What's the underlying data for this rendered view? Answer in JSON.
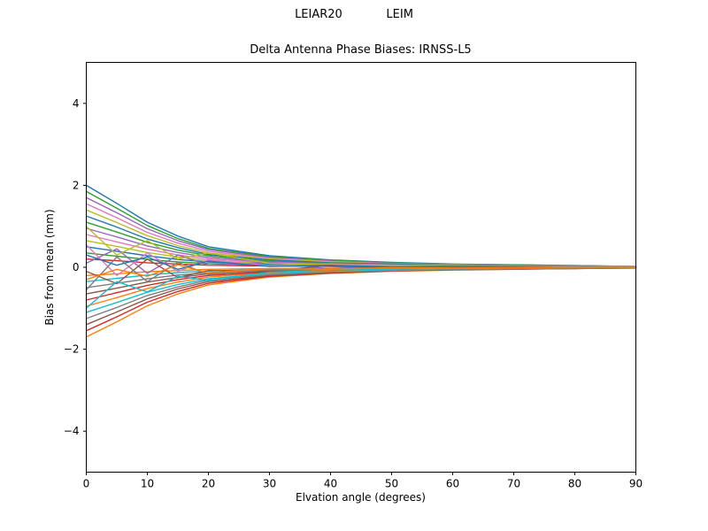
{
  "chart_data": {
    "type": "line",
    "suptitle": "LEIAR20            LEIM",
    "title": "Delta Antenna Phase Biases: IRNSS-L5",
    "xlabel": "Elvation angle (degrees)",
    "ylabel": "Bias from mean (mm)",
    "xlim": [
      0,
      90
    ],
    "ylim": [
      -5,
      5
    ],
    "x_ticks": [
      0,
      10,
      20,
      30,
      40,
      50,
      60,
      70,
      80,
      90
    ],
    "y_ticks": [
      -4,
      -2,
      0,
      2,
      4
    ],
    "grid": false,
    "legend": "none",
    "background": "#ffffff",
    "axes_color": "#000000",
    "palette": [
      "#1f77b4",
      "#ff7f0e",
      "#2ca02c",
      "#d62728",
      "#9467bd",
      "#8c564b",
      "#e377c2",
      "#7f7f7f",
      "#bcbd22",
      "#17becf"
    ],
    "x": [
      0,
      5,
      10,
      15,
      20,
      30,
      40,
      50,
      60,
      70,
      80,
      90
    ],
    "series": [
      {
        "values": [
          2.0,
          1.56,
          1.1,
          0.76,
          0.5,
          0.28,
          0.18,
          0.12,
          0.08,
          0.06,
          0.04,
          0.02
        ]
      },
      {
        "values": [
          -1.7,
          -1.33,
          -0.94,
          -0.65,
          -0.43,
          -0.24,
          -0.15,
          -0.1,
          -0.07,
          -0.05,
          -0.03,
          -0.02
        ]
      },
      {
        "values": [
          1.85,
          1.44,
          1.02,
          0.7,
          0.46,
          0.26,
          0.17,
          0.11,
          0.07,
          0.06,
          0.04,
          0.02
        ]
      },
      {
        "values": [
          -1.55,
          -1.21,
          -0.85,
          -0.59,
          -0.39,
          -0.22,
          -0.14,
          -0.09,
          -0.06,
          -0.05,
          -0.03,
          -0.02
        ]
      },
      {
        "values": [
          1.7,
          1.33,
          0.94,
          0.65,
          0.43,
          0.24,
          0.15,
          0.1,
          0.07,
          0.05,
          0.03,
          0.02
        ]
      },
      {
        "values": [
          -1.4,
          -1.09,
          -0.77,
          -0.53,
          -0.35,
          -0.2,
          -0.13,
          -0.08,
          -0.06,
          -0.04,
          -0.03,
          -0.01
        ]
      },
      {
        "values": [
          1.55,
          1.21,
          0.85,
          0.59,
          0.39,
          0.22,
          0.14,
          0.09,
          0.06,
          0.05,
          0.03,
          0.02
        ]
      },
      {
        "values": [
          -1.25,
          -0.98,
          -0.69,
          -0.48,
          -0.31,
          -0.18,
          -0.11,
          -0.08,
          -0.05,
          -0.04,
          -0.03,
          -0.01
        ]
      },
      {
        "values": [
          1.4,
          1.09,
          0.77,
          0.53,
          0.35,
          0.2,
          0.13,
          0.08,
          0.06,
          0.04,
          0.03,
          0.01
        ]
      },
      {
        "values": [
          -1.1,
          -0.86,
          -0.61,
          -0.42,
          -0.28,
          -0.15,
          -0.1,
          -0.07,
          -0.04,
          -0.03,
          -0.02,
          -0.01
        ]
      },
      {
        "values": [
          1.25,
          0.98,
          0.69,
          0.48,
          0.31,
          0.18,
          0.11,
          0.08,
          0.05,
          0.04,
          0.03,
          0.01
        ]
      },
      {
        "values": [
          -0.95,
          -0.74,
          -0.52,
          -0.36,
          -0.24,
          -0.13,
          -0.09,
          -0.06,
          -0.04,
          -0.03,
          -0.02,
          -0.01
        ]
      },
      {
        "values": [
          1.1,
          0.86,
          0.61,
          0.42,
          0.28,
          0.15,
          0.1,
          0.07,
          0.04,
          0.03,
          0.02,
          0.01
        ]
      },
      {
        "values": [
          -0.8,
          -0.62,
          -0.44,
          -0.3,
          -0.2,
          -0.11,
          -0.07,
          -0.05,
          -0.03,
          -0.02,
          -0.02,
          -0.01
        ]
      },
      {
        "values": [
          0.95,
          0.74,
          0.52,
          0.36,
          0.24,
          0.13,
          0.09,
          0.06,
          0.04,
          0.03,
          0.02,
          0.01
        ]
      },
      {
        "values": [
          -0.65,
          -0.51,
          -0.36,
          -0.25,
          -0.16,
          -0.09,
          -0.06,
          -0.04,
          -0.03,
          -0.02,
          -0.01,
          -0.01
        ]
      },
      {
        "values": [
          0.8,
          0.62,
          0.44,
          0.3,
          0.2,
          0.11,
          0.07,
          0.05,
          0.03,
          0.02,
          0.02,
          0.01
        ]
      },
      {
        "values": [
          -0.5,
          -0.39,
          -0.28,
          -0.19,
          -0.13,
          -0.07,
          -0.05,
          -0.03,
          -0.02,
          -0.02,
          -0.01,
          -0.01
        ]
      },
      {
        "values": [
          0.65,
          0.51,
          0.36,
          0.25,
          0.16,
          0.09,
          0.06,
          0.04,
          0.03,
          0.02,
          0.01,
          0.01
        ]
      },
      {
        "values": [
          -0.35,
          -0.27,
          -0.19,
          -0.13,
          -0.09,
          -0.05,
          -0.03,
          -0.02,
          -0.01,
          -0.01,
          -0.01,
          0.0
        ]
      },
      {
        "values": [
          0.5,
          0.39,
          0.28,
          0.19,
          0.13,
          0.07,
          0.05,
          0.03,
          0.02,
          0.02,
          0.01,
          0.01
        ]
      },
      {
        "values": [
          -0.2,
          -0.16,
          -0.11,
          -0.08,
          -0.05,
          -0.03,
          -0.02,
          -0.01,
          -0.01,
          -0.01,
          0.0,
          0.0
        ]
      },
      {
        "values": [
          0.35,
          0.27,
          0.19,
          0.13,
          0.09,
          0.05,
          0.03,
          0.02,
          0.01,
          0.01,
          0.01,
          0.0
        ]
      },
      {
        "values": [
          0.2,
          0.16,
          0.11,
          0.08,
          0.05,
          0.03,
          0.02,
          0.01,
          0.01,
          0.01,
          0.0,
          0.0
        ]
      },
      {
        "values": [
          0.1,
          0.45,
          -0.15,
          0.3,
          0.05,
          0.12,
          -0.04,
          0.06,
          0.02,
          0.01,
          0.02,
          0.0
        ]
      },
      {
        "values": [
          -0.1,
          -0.4,
          0.2,
          -0.25,
          -0.08,
          -0.1,
          0.05,
          -0.04,
          -0.02,
          -0.02,
          -0.01,
          0.0
        ]
      },
      {
        "values": [
          0.55,
          -0.2,
          0.35,
          -0.1,
          0.18,
          0.04,
          0.08,
          0.02,
          0.04,
          0.02,
          0.01,
          0.01
        ]
      },
      {
        "values": [
          -0.55,
          0.25,
          -0.35,
          0.12,
          -0.18,
          -0.06,
          -0.08,
          -0.03,
          -0.04,
          -0.02,
          -0.01,
          -0.01
        ]
      },
      {
        "values": [
          1.0,
          0.3,
          0.65,
          0.2,
          0.35,
          0.1,
          0.06,
          0.05,
          0.03,
          0.02,
          0.01,
          0.01
        ]
      },
      {
        "values": [
          -1.0,
          -0.35,
          -0.6,
          -0.22,
          -0.32,
          -0.12,
          -0.07,
          -0.05,
          -0.03,
          -0.02,
          -0.01,
          -0.01
        ]
      },
      {
        "values": [
          0.3,
          0.05,
          0.25,
          -0.05,
          0.15,
          0.02,
          0.05,
          0.01,
          0.02,
          0.01,
          0.0,
          0.0
        ]
      },
      {
        "values": [
          -0.3,
          -0.05,
          -0.22,
          0.06,
          -0.14,
          -0.03,
          -0.05,
          -0.01,
          -0.02,
          -0.01,
          0.0,
          0.0
        ]
      }
    ]
  }
}
